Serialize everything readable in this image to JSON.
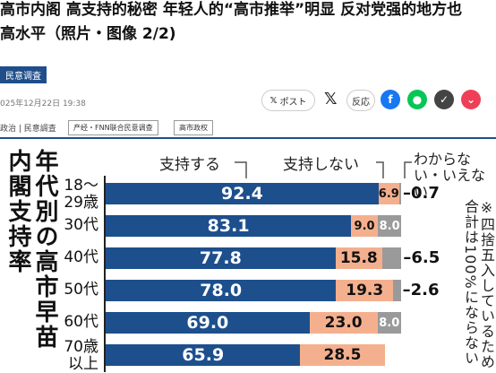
{
  "header": {
    "title": "高市内阁 高支持的秘密 年轻人的“高市推举”明显 反对党强的地方也",
    "subtitle": "高水平（照片・图像 2/2)",
    "tag": "民意调査",
    "date": "025年12月22日 19:38",
    "byline": "政治 | 民意調査",
    "pills": [
      "产经・FNN联合民意调查",
      "高市政权"
    ]
  },
  "share": {
    "post_label": "ポスト",
    "react_label": "反応",
    "icons": [
      "x-icon",
      "facebook-icon",
      "line-icon",
      "pocket-icon"
    ]
  },
  "chart_data": {
    "type": "bar",
    "title": "年代別の高市早苗内閣支持率",
    "stacked": true,
    "orientation": "horizontal",
    "categories": [
      "18〜29歳",
      "30代",
      "40代",
      "50代",
      "60代",
      "70歳以上"
    ],
    "series": [
      {
        "name": "支持する",
        "values": [
          92.4,
          83.1,
          77.8,
          78.0,
          69.0,
          65.9
        ],
        "color": "#1d4f8d"
      },
      {
        "name": "支持しない",
        "values": [
          6.9,
          9.0,
          15.8,
          19.3,
          23.0,
          28.5
        ],
        "color": "#f4b08e"
      },
      {
        "name": "わからない・いえない",
        "values": [
          0.7,
          8.0,
          6.5,
          2.6,
          8.0,
          null
        ],
        "color": "#9a9a9a"
      }
    ],
    "value_labels": [
      [
        "92.4",
        "6.9",
        "0.7"
      ],
      [
        "83.1",
        "9.0",
        "8.0"
      ],
      [
        "77.8",
        "15.8",
        "6.5"
      ],
      [
        "78.0",
        "19.3",
        "2.6"
      ],
      [
        "69.0",
        "23.0",
        "8.0"
      ],
      [
        "65.9",
        "28.5",
        ""
      ]
    ],
    "outside_label": [
      true,
      false,
      true,
      true,
      false,
      false
    ],
    "note": "※四捨五入しているため合計は100%にならない",
    "xlim": [
      0,
      100
    ]
  }
}
